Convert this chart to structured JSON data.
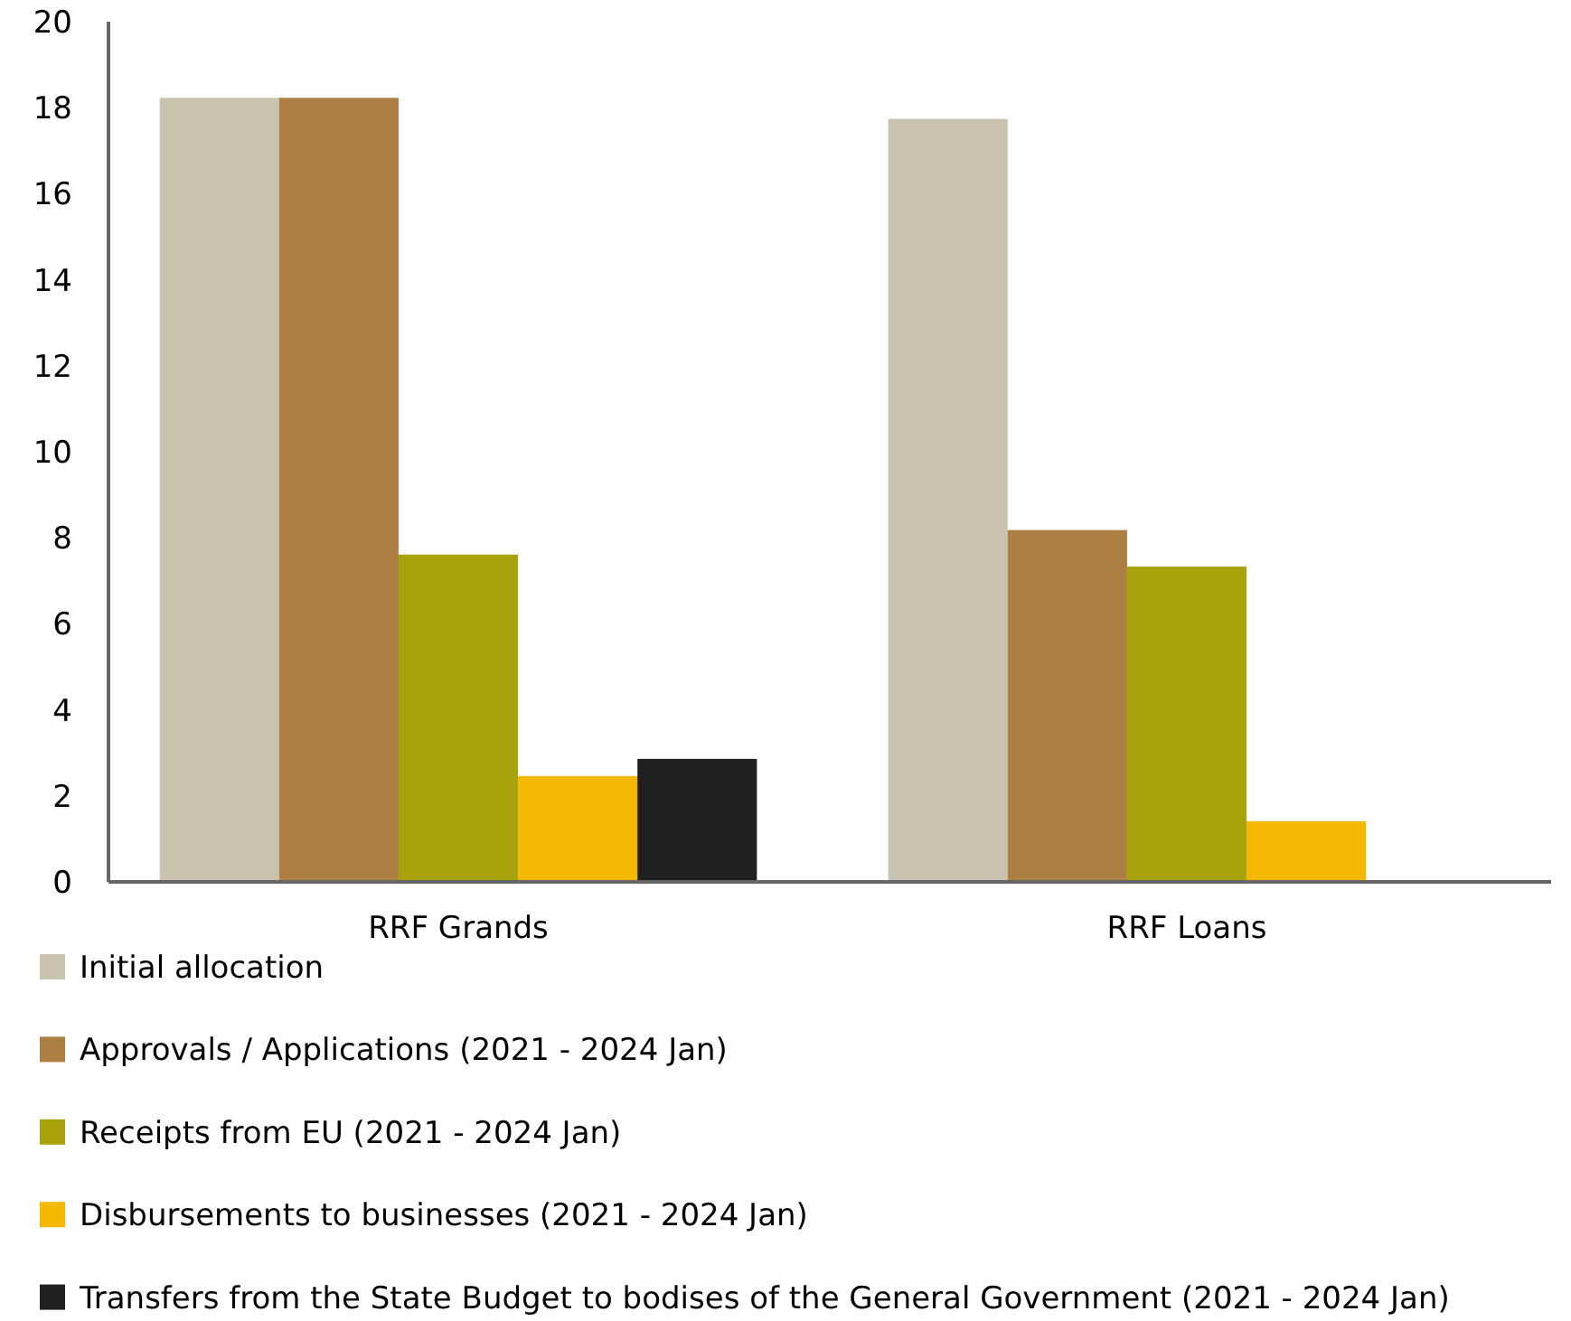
{
  "chart_data": {
    "type": "bar",
    "categories": [
      "RRF Grands",
      "RRF Loans"
    ],
    "series": [
      {
        "name": "Initial allocation",
        "color": "#c9c2ae",
        "values": [
          18.23,
          17.74
        ]
      },
      {
        "name": "Approvals / Applications (2021 - 2024 Jan)",
        "color": "#ad7f42",
        "values": [
          18.23,
          8.18
        ]
      },
      {
        "name": "Receipts from EU (2021 - 2024 Jan)",
        "color": "#a8a20d",
        "values": [
          7.61,
          7.33
        ]
      },
      {
        "name": "Disbursements to businesses (2021 - 2024 Jan)",
        "color": "#f5b800",
        "values": [
          2.46,
          1.41
        ]
      },
      {
        "name": "Transfers from the State Budget to bodises  of the General Government (2021 - 2024 Jan)",
        "color": "#202020",
        "values": [
          2.86,
          null
        ]
      }
    ],
    "ylim": [
      0,
      20
    ],
    "yticks": [
      0,
      2,
      4,
      6,
      8,
      10,
      12,
      14,
      16,
      18,
      20
    ],
    "grid": false,
    "legend": "bottom"
  }
}
